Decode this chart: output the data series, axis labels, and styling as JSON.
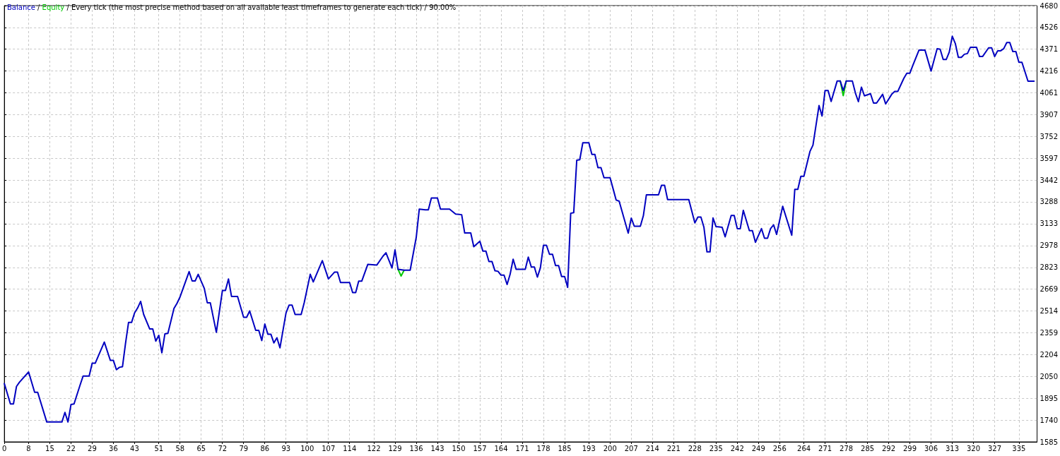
{
  "chart_data": {
    "type": "line",
    "title": "/ Every tick (the most precise method based on all available least timeframes to generate each tick) / 90.00%",
    "annotations": [
      "/"
    ],
    "series": [
      {
        "name": "Equity",
        "color": "#00c800",
        "x": [
          130,
          131,
          132,
          133,
          276,
          277,
          278
        ],
        "values": [
          2809,
          2762,
          2803,
          null,
          4146,
          4041,
          4146
        ]
      },
      {
        "name": "Balance",
        "color": "#0000c0",
        "x": [
          0,
          2,
          3,
          4,
          5,
          8,
          10,
          11,
          14,
          19,
          20,
          21,
          22,
          23,
          25,
          26,
          28,
          29,
          30,
          33,
          35,
          36,
          37,
          38,
          39,
          40,
          41,
          42,
          43,
          44,
          45,
          46,
          48,
          49,
          50,
          51,
          52,
          53,
          54,
          56,
          57,
          58,
          61,
          62,
          63,
          64,
          66,
          67,
          68,
          70,
          72,
          73,
          74,
          75,
          77,
          79,
          80,
          81,
          83,
          84,
          85,
          86,
          87,
          88,
          89,
          90,
          91,
          93,
          94,
          95,
          96,
          98,
          99,
          101,
          102,
          105,
          107,
          109,
          110,
          111,
          114,
          115,
          116,
          117,
          118,
          120,
          123,
          125,
          126,
          128,
          129,
          130,
          132,
          134,
          136,
          137,
          139,
          140,
          141,
          143,
          144,
          147,
          149,
          151,
          152,
          154,
          155,
          157,
          158,
          159,
          160,
          161,
          162,
          163,
          164,
          165,
          166,
          167,
          168,
          169,
          172,
          173,
          174,
          175,
          176,
          177,
          178,
          179,
          180,
          181,
          182,
          183,
          184,
          185,
          186,
          187,
          188,
          189,
          190,
          191,
          193,
          194,
          195,
          196,
          197,
          198,
          200,
          201,
          202,
          203,
          206,
          207,
          208,
          210,
          211,
          212,
          216,
          217,
          218,
          219,
          226,
          228,
          229,
          230,
          231,
          232,
          233,
          234,
          235,
          237,
          238,
          240,
          241,
          242,
          243,
          244,
          246,
          247,
          248,
          250,
          251,
          252,
          253,
          254,
          255,
          257,
          260,
          261,
          262,
          263,
          264,
          266,
          267,
          269,
          270,
          271,
          272,
          273,
          275,
          276,
          277,
          278,
          280,
          281,
          282,
          283,
          284,
          286,
          287,
          288,
          290,
          291,
          293,
          294,
          295,
          297,
          298,
          299,
          300,
          302,
          304,
          306,
          308,
          309,
          310,
          311,
          312,
          313,
          314,
          315,
          316,
          317,
          318,
          319,
          321,
          322,
          323,
          325,
          326,
          327,
          328,
          329,
          330,
          331,
          332,
          333,
          334,
          335,
          336,
          338,
          340
        ],
        "values": [
          1998,
          1854,
          1854,
          1978,
          2009,
          2081,
          1937,
          1937,
          1726,
          1726,
          1794,
          1726,
          1850,
          1854,
          1988,
          2052,
          2052,
          2143,
          2143,
          2293,
          2163,
          2163,
          2097,
          2114,
          2118,
          2283,
          2432,
          2432,
          2500,
          2535,
          2582,
          2489,
          2386,
          2386,
          2300,
          2341,
          2217,
          2351,
          2355,
          2531,
          2568,
          2613,
          2793,
          2727,
          2727,
          2774,
          2675,
          2572,
          2572,
          2362,
          2659,
          2659,
          2741,
          2617,
          2617,
          2469,
          2469,
          2514,
          2376,
          2376,
          2304,
          2421,
          2349,
          2349,
          2287,
          2324,
          2252,
          2500,
          2555,
          2555,
          2489,
          2489,
          2572,
          2774,
          2720,
          2871,
          2741,
          2789,
          2789,
          2716,
          2716,
          2644,
          2644,
          2725,
          2725,
          2844,
          2840,
          2902,
          2927,
          2819,
          2947,
          2809,
          2803,
          2803,
          3036,
          3236,
          3232,
          3232,
          3315,
          3315,
          3236,
          3236,
          3201,
          3197,
          3067,
          3067,
          2970,
          3009,
          2939,
          2939,
          2865,
          2865,
          2799,
          2795,
          2768,
          2768,
          2702,
          2774,
          2881,
          2809,
          2809,
          2896,
          2826,
          2826,
          2754,
          2820,
          2980,
          2980,
          2916,
          2916,
          2836,
          2836,
          2758,
          2758,
          2681,
          3207,
          3211,
          3583,
          3587,
          3707,
          3707,
          3624,
          3624,
          3531,
          3531,
          3459,
          3459,
          3381,
          3301,
          3293,
          3066,
          3173,
          3115,
          3115,
          3190,
          3338,
          3338,
          3406,
          3406,
          3304,
          3304,
          3139,
          3180,
          3180,
          3107,
          2933,
          2933,
          3174,
          3112,
          3108,
          3040,
          3191,
          3191,
          3098,
          3098,
          3228,
          3084,
          3084,
          3001,
          3098,
          3030,
          3030,
          3098,
          3125,
          3057,
          3257,
          3051,
          3377,
          3377,
          3469,
          3469,
          3645,
          3690,
          3971,
          3897,
          4078,
          4078,
          4000,
          4146,
          4146,
          4078,
          4146,
          4146,
          4061,
          3999,
          4102,
          4040,
          4055,
          3989,
          3989,
          4051,
          3983,
          4051,
          4071,
          4071,
          4164,
          4201,
          4201,
          4257,
          4364,
          4364,
          4216,
          4375,
          4371,
          4298,
          4298,
          4350,
          4463,
          4412,
          4313,
          4313,
          4335,
          4340,
          4385,
          4385,
          4319,
          4319,
          4381,
          4381,
          4319,
          4360,
          4360,
          4375,
          4418,
          4418,
          4354,
          4354,
          4278,
          4278,
          4144,
          4144
        ]
      }
    ],
    "xlim": [
      0,
      341
    ],
    "xticks": [
      0,
      8,
      15,
      22,
      29,
      36,
      43,
      51,
      58,
      65,
      72,
      79,
      86,
      93,
      100,
      107,
      114,
      122,
      129,
      136,
      143,
      150,
      157,
      164,
      171,
      178,
      185,
      193,
      200,
      207,
      214,
      221,
      228,
      235,
      242,
      249,
      256,
      264,
      271,
      278,
      285,
      292,
      299,
      306,
      313,
      320,
      327,
      335
    ],
    "ylim": [
      1585,
      4680
    ],
    "yticks": [
      1585,
      1740,
      1895,
      2050,
      2204,
      2359,
      2514,
      2669,
      2823,
      2978,
      3133,
      3288,
      3442,
      3597,
      3752,
      3907,
      4061,
      4216,
      4371,
      4526,
      4680
    ],
    "grid": true,
    "marker": "none"
  }
}
